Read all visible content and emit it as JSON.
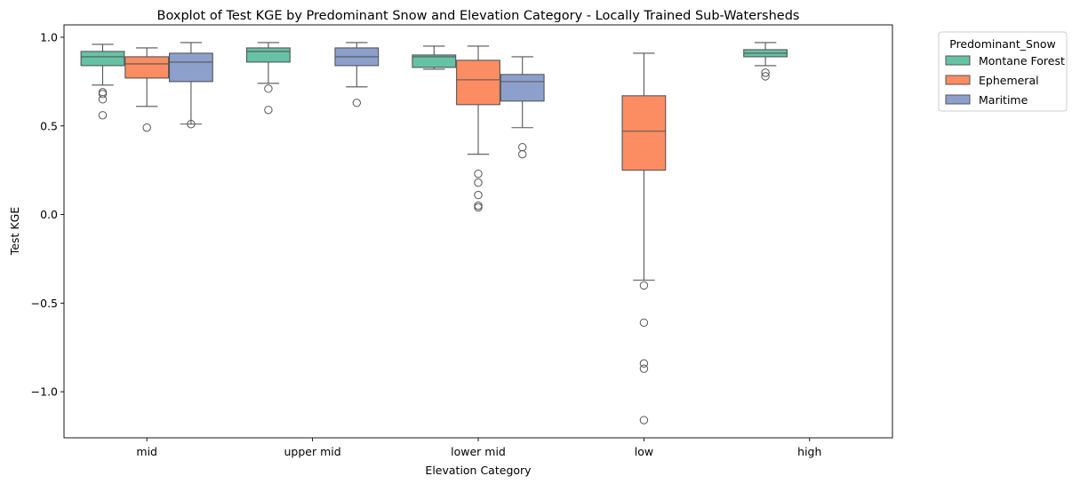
{
  "chart_data": {
    "type": "box",
    "title": "Boxplot of Test KGE by Predominant Snow and Elevation Category - Locally Trained Sub-Watersheds",
    "xlabel": "Elevation Category",
    "ylabel": "Test KGE",
    "ylim": [
      -1.26,
      1.07
    ],
    "yticks": [
      1.0,
      0.5,
      0.0,
      -0.5,
      -1.0
    ],
    "ytick_labels": [
      "1.0",
      "0.5",
      "0.0",
      "−0.5",
      "−1.0"
    ],
    "categories": [
      "mid",
      "upper mid",
      "lower mid",
      "low",
      "high"
    ],
    "legend_title": "Predominant_Snow",
    "legend_position": "outside-upper-right",
    "grid": false,
    "series": [
      {
        "name": "Montane Forest",
        "color": "#66c2a5",
        "boxes": [
          {
            "category": "mid",
            "whislo": 0.73,
            "q1": 0.84,
            "med": 0.89,
            "q3": 0.92,
            "whishi": 0.96,
            "fliers": [
              0.69,
              0.68,
              0.65,
              0.56
            ]
          },
          {
            "category": "upper mid",
            "whislo": 0.74,
            "q1": 0.86,
            "med": 0.92,
            "q3": 0.94,
            "whishi": 0.97,
            "fliers": [
              0.71,
              0.59
            ]
          },
          {
            "category": "lower mid",
            "whislo": 0.82,
            "q1": 0.83,
            "med": 0.89,
            "q3": 0.9,
            "whishi": 0.95,
            "fliers": []
          },
          null,
          {
            "category": "high",
            "whislo": 0.84,
            "q1": 0.89,
            "med": 0.91,
            "q3": 0.93,
            "whishi": 0.97,
            "fliers": [
              0.8,
              0.78
            ]
          }
        ]
      },
      {
        "name": "Ephemeral",
        "color": "#fc8d62",
        "boxes": [
          {
            "category": "mid",
            "whislo": 0.61,
            "q1": 0.77,
            "med": 0.85,
            "q3": 0.89,
            "whishi": 0.94,
            "fliers": [
              0.49
            ]
          },
          null,
          {
            "category": "lower mid",
            "whislo": 0.34,
            "q1": 0.62,
            "med": 0.76,
            "q3": 0.87,
            "whishi": 0.95,
            "fliers": [
              0.23,
              0.18,
              0.11,
              0.05,
              0.04
            ]
          },
          {
            "category": "low",
            "whislo": -0.37,
            "q1": 0.25,
            "med": 0.47,
            "q3": 0.67,
            "whishi": 0.91,
            "fliers": [
              -0.4,
              -0.61,
              -0.84,
              -0.87,
              -1.16
            ]
          },
          null
        ]
      },
      {
        "name": "Maritime",
        "color": "#8da0cb",
        "boxes": [
          {
            "category": "mid",
            "whislo": 0.51,
            "q1": 0.75,
            "med": 0.86,
            "q3": 0.91,
            "whishi": 0.97,
            "fliers": [
              0.51
            ]
          },
          {
            "category": "upper mid",
            "whislo": 0.72,
            "q1": 0.84,
            "med": 0.89,
            "q3": 0.94,
            "whishi": 0.97,
            "fliers": [
              0.63
            ]
          },
          {
            "category": "lower mid",
            "whislo": 0.49,
            "q1": 0.64,
            "med": 0.75,
            "q3": 0.79,
            "whishi": 0.89,
            "fliers": [
              0.38,
              0.34
            ]
          },
          null,
          null
        ]
      }
    ]
  }
}
